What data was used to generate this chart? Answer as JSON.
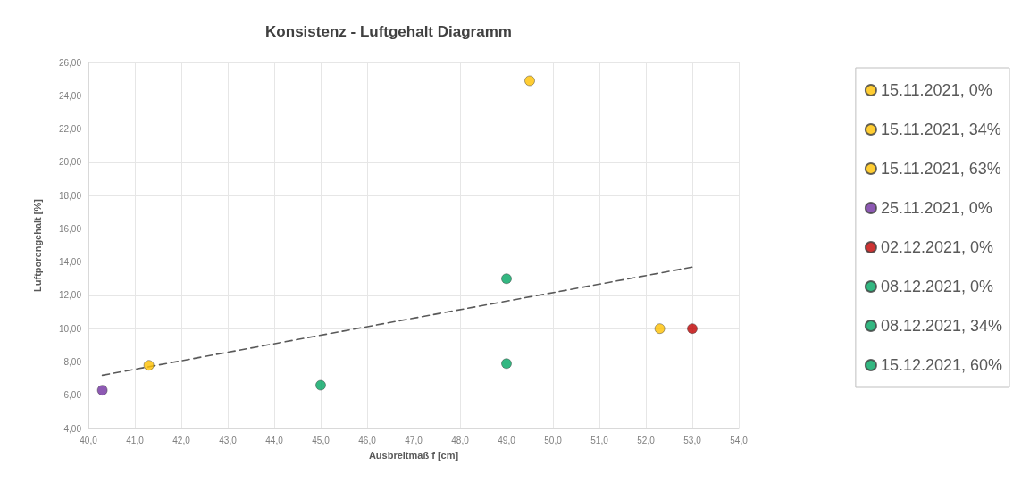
{
  "chart_data": {
    "type": "scatter",
    "title": "Konsistenz - Luftgehalt Diagramm",
    "xlabel": "Ausbreitmaß f [cm]",
    "ylabel": "Luftporengehalt [%]",
    "series": [
      {
        "name": "15.11.2021, 0%",
        "color": "#ffc000",
        "x": [
          41.3
        ],
        "values": [
          7.8
        ]
      },
      {
        "name": "15.11.2021, 34%",
        "color": "#ffc000",
        "x": [
          49.5
        ],
        "values": [
          24.9
        ]
      },
      {
        "name": "15.11.2021, 63%",
        "color": "#ffc000",
        "x": [
          52.3
        ],
        "values": [
          10.0
        ]
      },
      {
        "name": "25.11.2021, 0%",
        "color": "#7030a0",
        "x": [
          40.3
        ],
        "values": [
          6.3
        ]
      },
      {
        "name": "02.12.2021, 0%",
        "color": "#c00000",
        "x": [
          53.0
        ],
        "values": [
          10.0
        ]
      },
      {
        "name": "08.12.2021, 0%",
        "color": "#00a562",
        "x": [
          45.0
        ],
        "values": [
          6.6
        ]
      },
      {
        "name": "08.12.2021, 34%",
        "color": "#00a562",
        "x": [
          49.0
        ],
        "values": [
          7.9
        ]
      },
      {
        "name": "15.12.2021, 60%",
        "color": "#00a562",
        "x": [
          49.0
        ],
        "values": [
          13.0
        ]
      },
      {
        "type": "line",
        "color": "#595959",
        "line_style": "dashed",
        "marker": "none",
        "x": [
          40.3,
          53.0
        ],
        "values": [
          7.2,
          13.7
        ]
      }
    ],
    "xlim": [
      40,
      54
    ],
    "xticks": [
      {
        "value": 40,
        "label": "40,0"
      },
      {
        "value": 41,
        "label": "41,0"
      },
      {
        "value": 42,
        "label": "42,0"
      },
      {
        "value": 43,
        "label": "43,0"
      },
      {
        "value": 44,
        "label": "44,0"
      },
      {
        "value": 45,
        "label": "45,0"
      },
      {
        "value": 46,
        "label": "46,0"
      },
      {
        "value": 47,
        "label": "47,0"
      },
      {
        "value": 48,
        "label": "48,0"
      },
      {
        "value": 49,
        "label": "49,0"
      },
      {
        "value": 50,
        "label": "50,0"
      },
      {
        "value": 51,
        "label": "51,0"
      },
      {
        "value": 52,
        "label": "52,0"
      },
      {
        "value": 53,
        "label": "53,0"
      },
      {
        "value": 54,
        "label": "54,0"
      }
    ],
    "ylim": [
      4,
      26
    ],
    "yticks": [
      {
        "value": 4,
        "label": "4,00"
      },
      {
        "value": 6,
        "label": "6,00"
      },
      {
        "value": 8,
        "label": "8,00"
      },
      {
        "value": 10,
        "label": "10,00"
      },
      {
        "value": 12,
        "label": "12,00"
      },
      {
        "value": 14,
        "label": "14,00"
      },
      {
        "value": 16,
        "label": "16,00"
      },
      {
        "value": 18,
        "label": "18,00"
      },
      {
        "value": 20,
        "label": "20,00"
      },
      {
        "value": 22,
        "label": "22,00"
      },
      {
        "value": 24,
        "label": "24,00"
      },
      {
        "value": 26,
        "label": "26,00"
      }
    ],
    "grid": true,
    "legend": "right",
    "marker": "circle"
  }
}
